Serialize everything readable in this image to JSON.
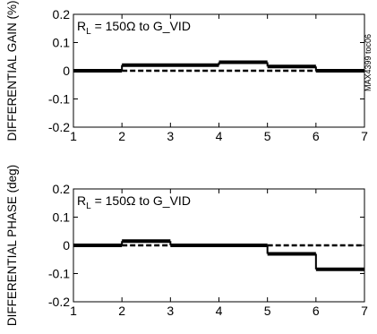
{
  "side_label": "MAX4399 toc06",
  "chart_data": [
    {
      "type": "line",
      "ylabel": "DIFFERENTIAL GAIN (%)",
      "annotation": {
        "prefix": "R",
        "sub": "L",
        "text": " = 150Ω to G_VID"
      },
      "xlim": [
        1,
        7
      ],
      "ylim": [
        -0.2,
        0.2
      ],
      "xticks": [
        1,
        2,
        3,
        4,
        5,
        6,
        7
      ],
      "yticks": [
        "0.2",
        "0.1",
        "0",
        "-0.1",
        "-0.2"
      ],
      "ytick_values": [
        0.2,
        0.1,
        0,
        -0.1,
        -0.2
      ],
      "series": [
        {
          "style": "solid",
          "segments": [
            [
              1,
              2,
              0
            ],
            [
              2,
              4,
              0.02
            ],
            [
              4,
              5,
              0.03
            ],
            [
              5,
              6,
              0.015
            ],
            [
              6,
              7,
              0
            ]
          ]
        },
        {
          "style": "dashed",
          "segments": [
            [
              2,
              6,
              0
            ]
          ]
        }
      ]
    },
    {
      "type": "line",
      "ylabel": "DIFFERENTIAL PHASE (deg)",
      "annotation": {
        "prefix": "R",
        "sub": "L",
        "text": " = 150Ω to G_VID"
      },
      "xlim": [
        1,
        7
      ],
      "ylim": [
        -0.2,
        0.2
      ],
      "xticks": [
        1,
        2,
        3,
        4,
        5,
        6,
        7
      ],
      "yticks": [
        "0.2",
        "0.1",
        "0",
        "-0.1",
        "-0.2"
      ],
      "ytick_values": [
        0.2,
        0.1,
        0,
        -0.1,
        -0.2
      ],
      "series": [
        {
          "style": "solid",
          "segments": [
            [
              1,
              2,
              0
            ],
            [
              2,
              3,
              0.015
            ],
            [
              3,
              5,
              0
            ],
            [
              5,
              6,
              -0.03
            ],
            [
              6,
              7,
              -0.085
            ]
          ]
        },
        {
          "style": "dashed",
          "segments": [
            [
              2,
              3,
              0
            ],
            [
              5,
              7,
              0
            ]
          ]
        }
      ]
    }
  ]
}
